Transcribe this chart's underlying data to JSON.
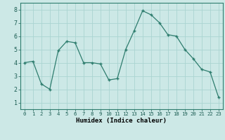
{
  "x": [
    0,
    1,
    2,
    3,
    4,
    5,
    6,
    7,
    8,
    9,
    10,
    11,
    12,
    13,
    14,
    15,
    16,
    17,
    18,
    19,
    20,
    21,
    22,
    23
  ],
  "y": [
    4.0,
    4.1,
    2.4,
    2.0,
    4.9,
    5.6,
    5.5,
    4.0,
    4.0,
    3.9,
    2.7,
    2.8,
    5.0,
    6.4,
    7.9,
    7.6,
    7.0,
    6.1,
    6.0,
    5.0,
    4.3,
    3.5,
    3.3,
    1.4
  ],
  "line_color": "#2e7d6e",
  "marker": "+",
  "bg_color": "#cce8e6",
  "grid_color": "#aad4d1",
  "xlabel": "Humidex (Indice chaleur)",
  "xlim": [
    -0.5,
    23.5
  ],
  "ylim": [
    0.5,
    8.5
  ],
  "yticks": [
    1,
    2,
    3,
    4,
    5,
    6,
    7,
    8
  ],
  "xticks": [
    0,
    1,
    2,
    3,
    4,
    5,
    6,
    7,
    8,
    9,
    10,
    11,
    12,
    13,
    14,
    15,
    16,
    17,
    18,
    19,
    20,
    21,
    22,
    23
  ]
}
